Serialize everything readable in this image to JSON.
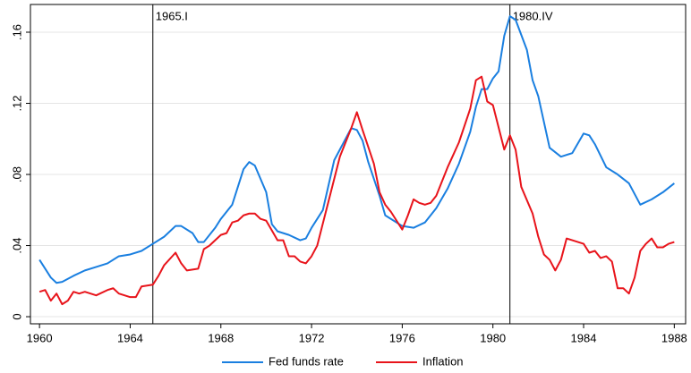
{
  "chart_data": {
    "type": "line",
    "xlim": [
      1959.6,
      1988.5
    ],
    "ylim": [
      -0.004,
      0.1756
    ],
    "xticks": [
      1960,
      1964,
      1968,
      1972,
      1976,
      1980,
      1984,
      1988
    ],
    "yticks": [
      0,
      {
        "value": 0.04,
        "label": ".04"
      },
      {
        "value": 0.08,
        "label": ".08"
      },
      {
        "value": 0.12,
        "label": ".12"
      },
      {
        "value": 0.16,
        "label": ".16"
      }
    ],
    "grid": true,
    "legend": "bottom",
    "annotations": [
      {
        "x": 1965,
        "label": "1965.I"
      },
      {
        "x": 1980.75,
        "label": "1980.IV"
      }
    ],
    "series": [
      {
        "name": "Fed funds rate",
        "color": "#1a7fe0",
        "x": [
          1960,
          1960.5,
          1960.75,
          1961,
          1961.5,
          1962,
          1962.5,
          1963,
          1963.5,
          1964,
          1964.5,
          1965,
          1965.5,
          1966,
          1966.25,
          1966.75,
          1967,
          1967.25,
          1967.75,
          1968,
          1968.5,
          1969,
          1969.25,
          1969.5,
          1970,
          1970.25,
          1970.5,
          1971,
          1971.5,
          1971.75,
          1972,
          1972.5,
          1973,
          1973.5,
          1973.75,
          1974,
          1974.25,
          1974.5,
          1975,
          1975.25,
          1975.5,
          1976,
          1976.5,
          1977,
          1977.5,
          1978,
          1978.5,
          1979,
          1979.25,
          1979.5,
          1979.75,
          1980,
          1980.25,
          1980.5,
          1980.75,
          1981,
          1981.5,
          1981.75,
          1982,
          1982.5,
          1983,
          1983.5,
          1984,
          1984.25,
          1984.5,
          1985,
          1985.5,
          1986,
          1986.5,
          1987,
          1987.5,
          1988
        ],
        "values": [
          0.032,
          0.022,
          0.019,
          0.0196,
          0.023,
          0.026,
          0.028,
          0.03,
          0.034,
          0.035,
          0.037,
          0.041,
          0.045,
          0.051,
          0.051,
          0.047,
          0.042,
          0.042,
          0.05,
          0.055,
          0.063,
          0.083,
          0.087,
          0.085,
          0.07,
          0.052,
          0.048,
          0.046,
          0.043,
          0.044,
          0.05,
          0.06,
          0.088,
          0.1,
          0.106,
          0.105,
          0.099,
          0.087,
          0.068,
          0.057,
          0.055,
          0.051,
          0.05,
          0.053,
          0.061,
          0.072,
          0.086,
          0.104,
          0.118,
          0.128,
          0.128,
          0.134,
          0.138,
          0.158,
          0.169,
          0.167,
          0.15,
          0.133,
          0.124,
          0.095,
          0.09,
          0.092,
          0.103,
          0.102,
          0.097,
          0.084,
          0.08,
          0.075,
          0.063,
          0.066,
          0.07,
          0.075
        ]
      },
      {
        "name": "Inflation",
        "color": "#e8141b",
        "x": [
          1960,
          1960.25,
          1960.5,
          1960.75,
          1961,
          1961.25,
          1961.5,
          1961.75,
          1962,
          1962.5,
          1963,
          1963.25,
          1963.5,
          1964,
          1964.25,
          1964.5,
          1965,
          1965.25,
          1965.5,
          1966,
          1966.25,
          1966.5,
          1967,
          1967.25,
          1967.5,
          1968,
          1968.25,
          1968.5,
          1968.75,
          1969,
          1969.25,
          1969.5,
          1969.75,
          1970,
          1970.5,
          1970.75,
          1971,
          1971.25,
          1971.5,
          1971.75,
          1972,
          1972.25,
          1972.75,
          1973.25,
          1973.75,
          1974,
          1974.25,
          1974.75,
          1975,
          1975.25,
          1975.5,
          1976,
          1976.25,
          1976.5,
          1976.75,
          1977,
          1977.25,
          1977.5,
          1978,
          1978.5,
          1979,
          1979.25,
          1979.5,
          1979.75,
          1980,
          1980.5,
          1980.75,
          1981,
          1981.25,
          1981.75,
          1982,
          1982.25,
          1982.5,
          1982.75,
          1983,
          1983.25,
          1983.5,
          1984,
          1984.25,
          1984.5,
          1984.75,
          1985,
          1985.25,
          1985.5,
          1985.75,
          1986,
          1986.25,
          1986.5,
          1986.75,
          1987,
          1987.25,
          1987.5,
          1987.75,
          1988
        ],
        "values": [
          0.014,
          0.015,
          0.009,
          0.013,
          0.007,
          0.009,
          0.014,
          0.013,
          0.014,
          0.012,
          0.015,
          0.016,
          0.013,
          0.011,
          0.011,
          0.017,
          0.018,
          0.023,
          0.029,
          0.036,
          0.03,
          0.026,
          0.027,
          0.038,
          0.04,
          0.046,
          0.047,
          0.053,
          0.054,
          0.057,
          0.058,
          0.058,
          0.055,
          0.054,
          0.043,
          0.043,
          0.034,
          0.034,
          0.031,
          0.03,
          0.034,
          0.04,
          0.065,
          0.09,
          0.106,
          0.115,
          0.105,
          0.086,
          0.07,
          0.063,
          0.059,
          0.049,
          0.057,
          0.066,
          0.064,
          0.063,
          0.064,
          0.068,
          0.084,
          0.098,
          0.117,
          0.133,
          0.135,
          0.121,
          0.119,
          0.094,
          0.102,
          0.094,
          0.073,
          0.058,
          0.045,
          0.035,
          0.032,
          0.026,
          0.032,
          0.044,
          0.043,
          0.041,
          0.036,
          0.037,
          0.033,
          0.034,
          0.031,
          0.016,
          0.016,
          0.013,
          0.022,
          0.037,
          0.041,
          0.044,
          0.039,
          0.039,
          0.041,
          0.042
        ]
      }
    ]
  }
}
